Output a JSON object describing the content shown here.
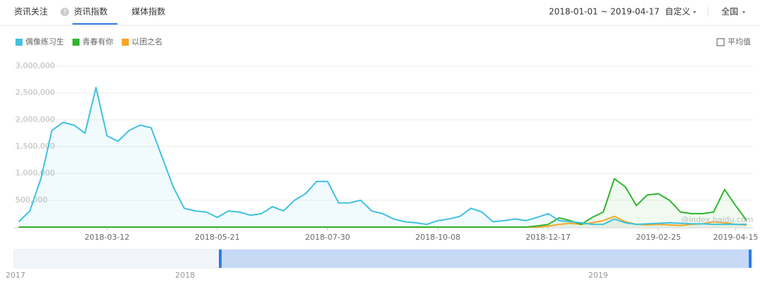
{
  "header": {
    "title": "资讯关注",
    "tabs": [
      "资讯指数",
      "媒体指数"
    ],
    "date_range": "2018-01-01 ~ 2019-04-17",
    "custom": "自定义",
    "region": "全国"
  },
  "average_toggle": "平均值",
  "watermark": "@index.baidu.com",
  "navigator": {
    "labels": [
      "2017",
      "2018",
      "2019"
    ]
  },
  "chart_data": {
    "type": "line",
    "x": [
      "2018-01-15",
      "2018-01-22",
      "2018-01-29",
      "2018-02-05",
      "2018-02-12",
      "2018-02-19",
      "2018-02-26",
      "2018-03-05",
      "2018-03-12",
      "2018-03-19",
      "2018-03-26",
      "2018-04-02",
      "2018-04-09",
      "2018-04-16",
      "2018-04-23",
      "2018-04-30",
      "2018-05-07",
      "2018-05-14",
      "2018-05-21",
      "2018-05-28",
      "2018-06-04",
      "2018-06-11",
      "2018-06-18",
      "2018-06-25",
      "2018-07-02",
      "2018-07-09",
      "2018-07-16",
      "2018-07-23",
      "2018-07-30",
      "2018-08-06",
      "2018-08-13",
      "2018-08-20",
      "2018-08-27",
      "2018-09-03",
      "2018-09-10",
      "2018-09-17",
      "2018-09-24",
      "2018-10-01",
      "2018-10-08",
      "2018-10-15",
      "2018-10-22",
      "2018-10-29",
      "2018-11-05",
      "2018-11-12",
      "2018-11-19",
      "2018-11-26",
      "2018-12-03",
      "2018-12-10",
      "2018-12-17",
      "2018-12-24",
      "2018-12-31",
      "2019-01-07",
      "2019-01-14",
      "2019-01-21",
      "2019-01-28",
      "2019-02-04",
      "2019-02-11",
      "2019-02-18",
      "2019-02-25",
      "2019-03-04",
      "2019-03-11",
      "2019-03-18",
      "2019-03-25",
      "2019-04-01",
      "2019-04-08",
      "2019-04-15",
      "2019-04-22"
    ],
    "xlim": [
      "2018-01-12",
      "2019-04-26"
    ],
    "xticks": [
      "2018-03-12",
      "2018-05-21",
      "2018-07-30",
      "2018-10-08",
      "2018-12-17",
      "2019-02-25",
      "2019-04-15"
    ],
    "ylim": [
      0,
      3000000
    ],
    "yticks": [
      {
        "value": 500000,
        "label": "500,000"
      },
      {
        "value": 1000000,
        "label": "1,000,000"
      },
      {
        "value": 1500000,
        "label": "1,500,000"
      },
      {
        "value": 2000000,
        "label": "2,000,000"
      },
      {
        "value": 2500000,
        "label": "2,500,000"
      },
      {
        "value": 3000000,
        "label": "3,000,000"
      }
    ],
    "grid": true,
    "series": [
      {
        "name": "偶像练习生",
        "color": "#3fc1e0",
        "values": [
          100000,
          300000,
          900000,
          1800000,
          1950000,
          1900000,
          1750000,
          2600000,
          1700000,
          1600000,
          1800000,
          1900000,
          1850000,
          1300000,
          750000,
          350000,
          300000,
          280000,
          180000,
          300000,
          280000,
          220000,
          250000,
          380000,
          300000,
          500000,
          620000,
          850000,
          850000,
          450000,
          450000,
          500000,
          300000,
          250000,
          150000,
          100000,
          80000,
          50000,
          120000,
          150000,
          200000,
          350000,
          280000,
          100000,
          120000,
          150000,
          120000,
          180000,
          250000,
          120000,
          100000,
          80000,
          50000,
          50000,
          150000,
          80000,
          50000,
          60000,
          70000,
          80000,
          70000,
          60000,
          60000,
          50000,
          50000,
          50000,
          50000
        ]
      },
      {
        "name": "青春有你",
        "color": "#2fb52f",
        "values": [
          0,
          0,
          0,
          0,
          0,
          0,
          0,
          0,
          0,
          0,
          0,
          0,
          0,
          0,
          0,
          0,
          0,
          0,
          0,
          0,
          0,
          0,
          0,
          0,
          0,
          0,
          0,
          0,
          0,
          0,
          0,
          0,
          0,
          0,
          0,
          0,
          0,
          0,
          0,
          0,
          0,
          0,
          0,
          0,
          0,
          0,
          0,
          20000,
          50000,
          170000,
          120000,
          50000,
          180000,
          280000,
          900000,
          750000,
          400000,
          600000,
          620000,
          500000,
          280000,
          250000,
          250000,
          280000,
          700000,
          400000,
          120000
        ]
      },
      {
        "name": "以团之名",
        "color": "#f5a623",
        "values": [
          0,
          0,
          0,
          0,
          0,
          0,
          0,
          0,
          0,
          0,
          0,
          0,
          0,
          0,
          0,
          0,
          0,
          0,
          0,
          0,
          0,
          0,
          0,
          0,
          0,
          0,
          0,
          0,
          0,
          0,
          0,
          0,
          0,
          0,
          0,
          0,
          0,
          0,
          0,
          0,
          0,
          0,
          0,
          0,
          0,
          0,
          0,
          0,
          20000,
          50000,
          70000,
          50000,
          80000,
          120000,
          200000,
          100000,
          50000,
          40000,
          50000,
          40000,
          30000,
          50000,
          60000,
          100000,
          80000,
          50000,
          40000
        ]
      }
    ]
  }
}
